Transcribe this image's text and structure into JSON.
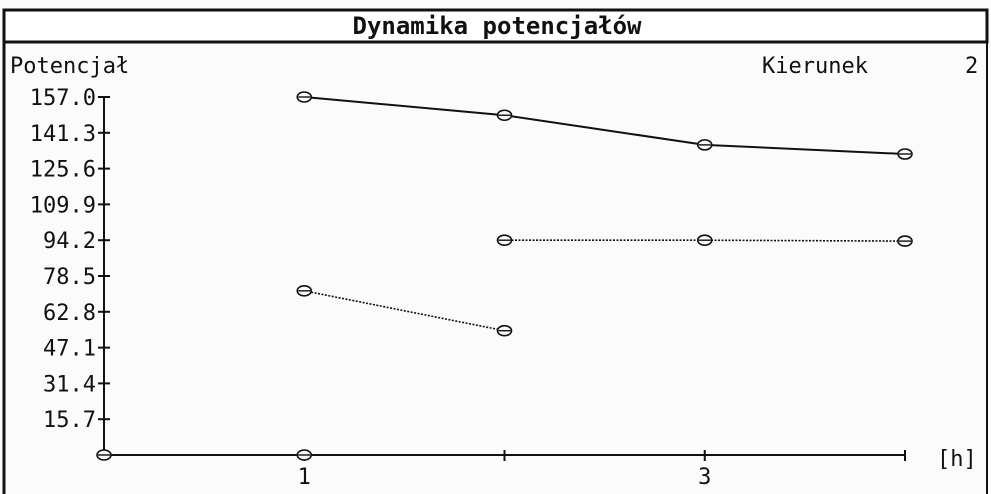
{
  "header": {
    "title": "Dynamika potencjałów"
  },
  "panel": {
    "left_label": "Potencjał",
    "direction_label": "Kierunek",
    "direction_value": "2"
  },
  "chart_data": {
    "type": "line",
    "title": "Dynamika potencjałów",
    "xlabel": "[h]",
    "ylabel": "Potencjał",
    "xlim": [
      0,
      4
    ],
    "ylim": [
      0,
      157.0
    ],
    "x_tick_values": [
      0,
      1,
      2,
      3,
      4
    ],
    "x_tick_labels": [
      "",
      "1",
      "",
      "3",
      ""
    ],
    "y_ticks": [
      15.7,
      31.4,
      47.1,
      62.8,
      78.5,
      94.2,
      109.9,
      125.6,
      141.3,
      157.0
    ],
    "y_tick_labels": [
      "15.7",
      "31.4",
      "47.1",
      "62.8",
      "78.5",
      "94.2",
      "109.9",
      "125.6",
      "141.3",
      "157.0"
    ],
    "grid": false,
    "series": [
      {
        "style": "solid",
        "x": [
          1,
          2,
          3,
          4
        ],
        "y": [
          157.0,
          149.0,
          136.0,
          132.0
        ]
      },
      {
        "style": "dotted",
        "x": [
          2,
          3,
          4
        ],
        "y": [
          94.2,
          94.2,
          93.8
        ]
      },
      {
        "style": "dotted",
        "x": [
          1,
          2
        ],
        "y": [
          72.0,
          54.5
        ]
      }
    ],
    "origin_markers": [
      {
        "x": 0,
        "y": 0
      },
      {
        "x": 1,
        "y": 0
      }
    ]
  },
  "colors": {
    "ink": "#111111",
    "background": "#fbfbfb"
  }
}
